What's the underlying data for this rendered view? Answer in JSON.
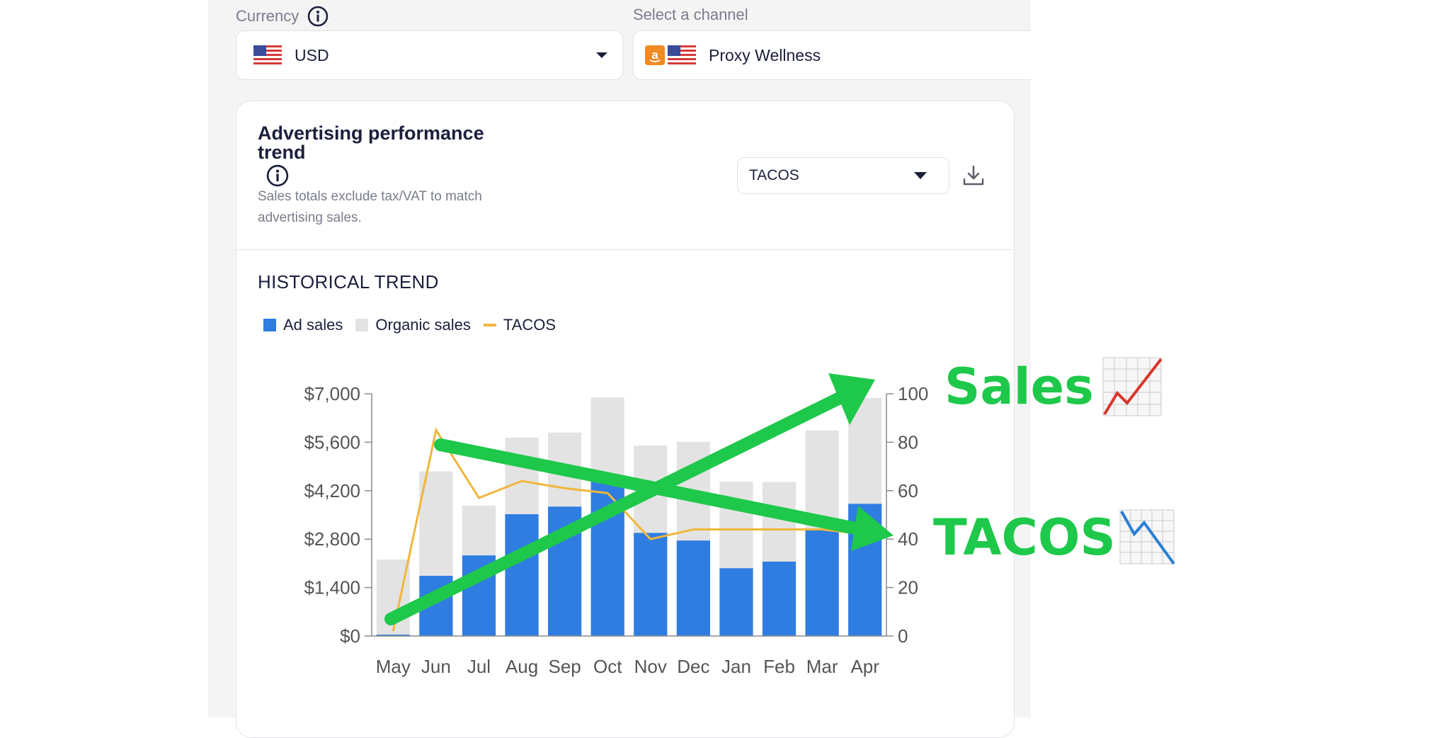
{
  "currency": {
    "label": "Currency",
    "value": "USD"
  },
  "channel": {
    "label": "Select a channel",
    "value": "Proxy Wellness"
  },
  "card": {
    "title": "Advertising performance trend",
    "subtitle": "Sales totals exclude tax/VAT to match advertising sales.",
    "metric_select": "TACOS",
    "section_title": "HISTORICAL TREND"
  },
  "legend": {
    "ad_sales": "Ad sales",
    "organic_sales": "Organic sales",
    "tacos": "TACOS"
  },
  "annotations": {
    "sales": "Sales",
    "tacos": "TACOS"
  },
  "colors": {
    "ad_sales": "#2f7de1",
    "organic_sales": "#e4e3e3",
    "tacos": "#f0b63c",
    "annotation": "#1ec84a"
  },
  "icons": [
    "us-flag-icon",
    "info-icon",
    "chevron-down-icon",
    "amazon-icon",
    "download-icon",
    "chart-increasing-icon",
    "chart-decreasing-icon"
  ],
  "chart_data": {
    "type": "bar",
    "stacked": true,
    "categories": [
      "May",
      "Jun",
      "Jul",
      "Aug",
      "Sep",
      "Oct",
      "Nov",
      "Dec",
      "Jan",
      "Feb",
      "Mar",
      "Apr"
    ],
    "series": [
      {
        "name": "Ad sales",
        "type": "bar",
        "axis": "left",
        "values": [
          40,
          1740,
          2330,
          3520,
          3740,
          4480,
          2980,
          2760,
          1960,
          2150,
          3050,
          3820
        ]
      },
      {
        "name": "Organic sales",
        "type": "bar",
        "axis": "left",
        "values": [
          2170,
          3020,
          1440,
          2210,
          2140,
          2420,
          2520,
          2850,
          2500,
          2300,
          2890,
          3060
        ]
      },
      {
        "name": "TACOS",
        "type": "line",
        "axis": "right",
        "values": [
          2,
          85,
          57,
          64,
          61,
          59,
          40,
          44,
          44,
          44,
          44,
          42
        ]
      }
    ],
    "y_left": {
      "ticks": [
        "$0",
        "$1,400",
        "$2,800",
        "$4,200",
        "$5,600",
        "$7,000"
      ],
      "min": 0,
      "max": 7000
    },
    "y_right": {
      "ticks": [
        "0",
        "20",
        "40",
        "60",
        "80",
        "100"
      ],
      "min": 0,
      "max": 100
    },
    "legend_position": "top-left"
  }
}
